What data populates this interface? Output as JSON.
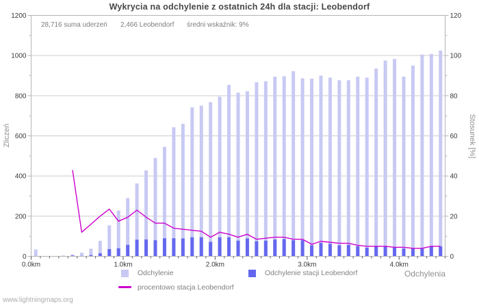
{
  "title": "Wykrycia na odchylenie z ostatnich 24h dla stacji: Leobendorf",
  "stats": {
    "total": "28,716 suma uderzeń",
    "station": "2,466 Leobendorf",
    "ratio": "średni wskaźnik: 9%"
  },
  "legend": {
    "total_label": "Odchylenie",
    "station_label": "Odchylenie stacji Leobendorf",
    "percent_label": "procentowo stacja Leobendorf"
  },
  "footer": "www.lightningmaps.org",
  "colors": {
    "total_bar": "#c8c9f3",
    "station_bar": "#6568ee",
    "percent_line": "#cc00cc",
    "grid": "#cdcdcd",
    "axis_box": "#b4b4b4",
    "tick_text": "#3a3a3a"
  },
  "chart_data": {
    "type": "bar",
    "title": "Wykrycia na odchylenie z ostatnich 24h dla stacji: Leobendorf",
    "x_start_km": 0.05,
    "x_step_km": 0.1,
    "x_axis": {
      "label": "Odchylenia",
      "range_km": [
        0,
        4.5
      ],
      "tick_km": [
        0,
        1,
        2,
        3,
        4
      ],
      "tick_labels": [
        "0.0km",
        "1.0km",
        "2.0km",
        "3.0km",
        "4.0km"
      ],
      "minor_tick_step_km": 0.1
    },
    "y_left": {
      "label": "Zliczeń",
      "min": 0,
      "max": 1200,
      "major_step": 200,
      "minor_step": 100
    },
    "y_right": {
      "label": "Stosunek [%]",
      "min": 0,
      "max": 120,
      "major_step": 20,
      "minor_step": 10
    },
    "grid": "horizontal-only",
    "legend_position": "bottom",
    "series": [
      {
        "name": "Odchylenie",
        "type": "bar",
        "axis": "left",
        "values": [
          34,
          0,
          0,
          4,
          9,
          18,
          38,
          77,
          154,
          228,
          290,
          363,
          428,
          490,
          545,
          643,
          660,
          742,
          750,
          768,
          795,
          854,
          815,
          822,
          867,
          872,
          895,
          897,
          922,
          887,
          885,
          900,
          890,
          877,
          877,
          895,
          890,
          935,
          975,
          983,
          895,
          950,
          1005,
          1008,
          1025
        ]
      },
      {
        "name": "Odchylenie stacji Leobendorf",
        "type": "bar",
        "axis": "left",
        "values": [
          0,
          0,
          0,
          0,
          4,
          2,
          6,
          15,
          36,
          40,
          57,
          83,
          84,
          80,
          90,
          90,
          89,
          95,
          95,
          72,
          95,
          95,
          78,
          89,
          75,
          78,
          84,
          86,
          80,
          80,
          55,
          67,
          62,
          55,
          57,
          50,
          43,
          48,
          49,
          44,
          39,
          38,
          38,
          50,
          49
        ]
      },
      {
        "name": "procentowo stacja Leobendorf",
        "type": "line",
        "axis": "right",
        "values": [
          null,
          null,
          null,
          null,
          43,
          12,
          16,
          20,
          23.5,
          17.5,
          19.5,
          23,
          19.5,
          16.5,
          16.5,
          14,
          13.5,
          13,
          12.5,
          9.5,
          12,
          11,
          9.5,
          11,
          8.5,
          9,
          9.5,
          9.5,
          8.5,
          8.5,
          6,
          7.5,
          7,
          6.5,
          6.5,
          5.5,
          5,
          5,
          5,
          4.5,
          4.5,
          4,
          4,
          5,
          5
        ]
      }
    ]
  }
}
